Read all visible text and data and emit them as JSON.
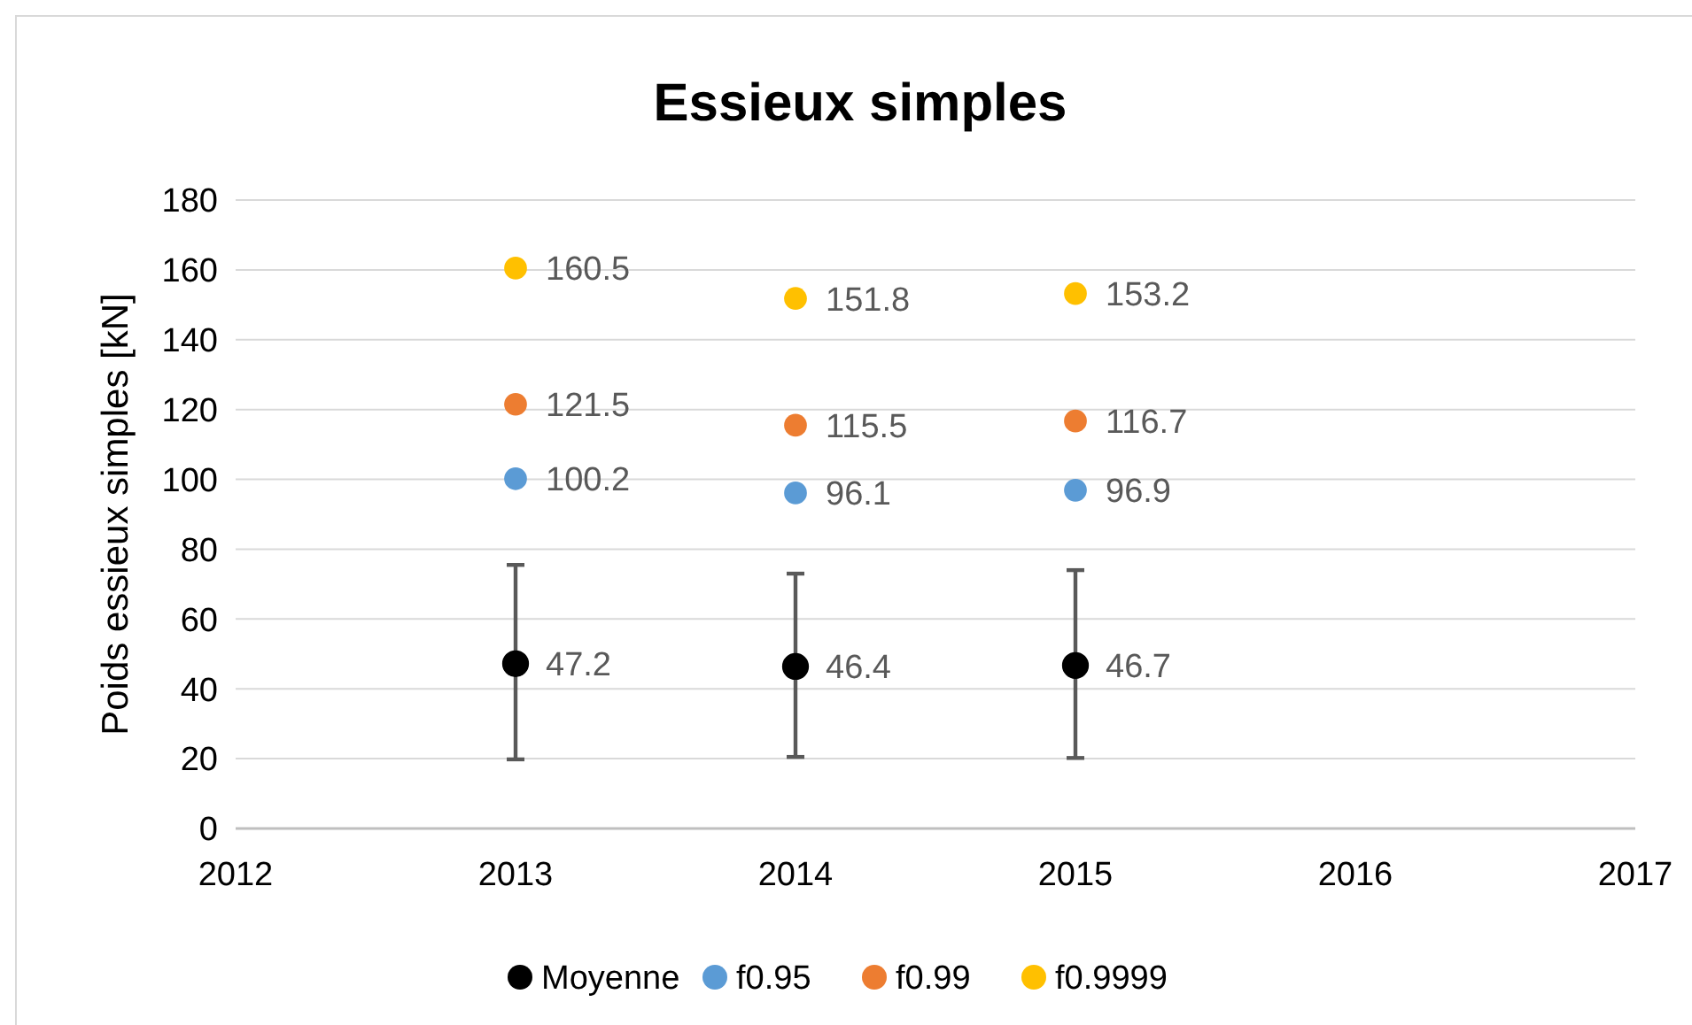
{
  "chart_data": {
    "type": "scatter",
    "title": "Essieux simples",
    "ylabel": "Poids essieux simples [kN]",
    "x": [
      2013,
      2014,
      2015
    ],
    "series": [
      {
        "name": "Moyenne",
        "color": "#000000",
        "values": [
          47.2,
          46.4,
          46.7
        ],
        "errors": [
          [
            19.8,
            75.5
          ],
          [
            20.5,
            73.0
          ],
          [
            20.2,
            74.0
          ]
        ]
      },
      {
        "name": "f0.95",
        "color": "#5b9bd5",
        "values": [
          100.2,
          96.1,
          96.9
        ]
      },
      {
        "name": "f0.99",
        "color": "#ed7d31",
        "values": [
          121.5,
          115.5,
          116.7
        ]
      },
      {
        "name": "f0.9999",
        "color": "#ffc000",
        "values": [
          160.5,
          151.8,
          153.2
        ]
      }
    ],
    "xlim": [
      2012,
      2017
    ],
    "xticks": [
      2012,
      2013,
      2014,
      2015,
      2016,
      2017
    ],
    "ylim": [
      0,
      180
    ],
    "yticks": [
      0,
      20,
      40,
      60,
      80,
      100,
      120,
      140,
      160,
      180
    ],
    "grid": "y",
    "legend": "bottom",
    "marker": "circle",
    "data_labels": true
  }
}
